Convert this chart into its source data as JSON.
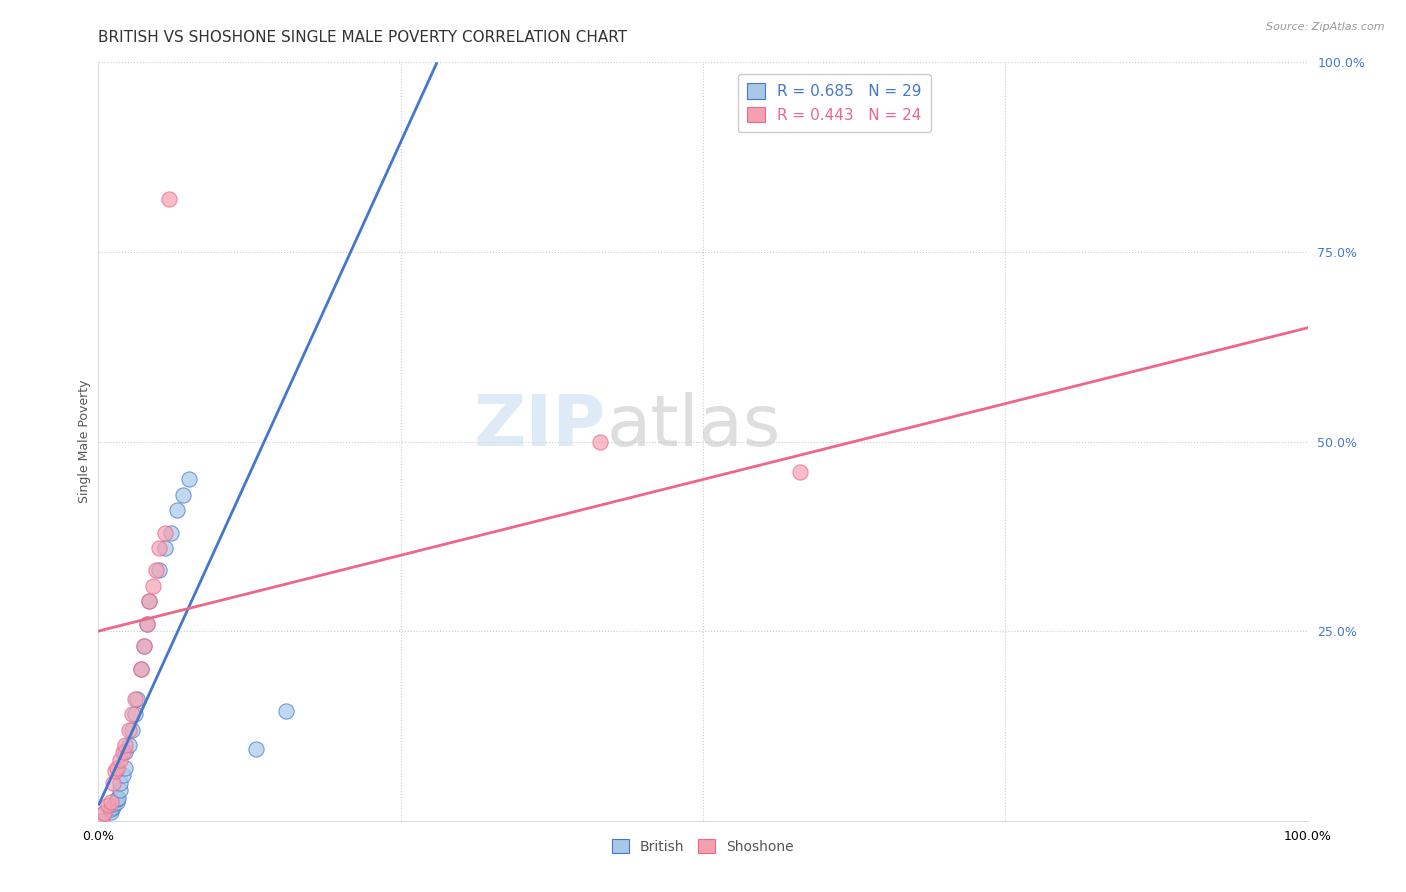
{
  "title": "BRITISH VS SHOSHONE SINGLE MALE POVERTY CORRELATION CHART",
  "source": "Source: ZipAtlas.com",
  "ylabel": "Single Male Poverty",
  "xlabel": "",
  "watermark_zip": "ZIP",
  "watermark_atlas": "atlas",
  "xlim": [
    0.0,
    1.0
  ],
  "ylim": [
    0.0,
    1.0
  ],
  "british_R": "R = 0.685",
  "british_N": "N = 29",
  "shoshone_R": "R = 0.443",
  "shoshone_N": "N = 24",
  "british_color": "#a8c8e8",
  "shoshone_color": "#f4a0b0",
  "trend_british_color": "#4477cc",
  "trend_shoshone_color": "#ee6688",
  "british_x": [
    0.005,
    0.01,
    0.01,
    0.012,
    0.013,
    0.015,
    0.015,
    0.016,
    0.018,
    0.018,
    0.02,
    0.022,
    0.022,
    0.025,
    0.028,
    0.03,
    0.032,
    0.035,
    0.038,
    0.04,
    0.042,
    0.05,
    0.055,
    0.06,
    0.065,
    0.07,
    0.075,
    0.13,
    0.155
  ],
  "british_y": [
    0.01,
    0.012,
    0.015,
    0.018,
    0.022,
    0.025,
    0.028,
    0.03,
    0.04,
    0.05,
    0.06,
    0.07,
    0.09,
    0.1,
    0.12,
    0.14,
    0.16,
    0.2,
    0.23,
    0.26,
    0.29,
    0.33,
    0.36,
    0.38,
    0.41,
    0.43,
    0.45,
    0.095,
    0.145
  ],
  "shoshone_x": [
    0.003,
    0.005,
    0.008,
    0.01,
    0.012,
    0.014,
    0.015,
    0.018,
    0.02,
    0.022,
    0.025,
    0.028,
    0.03,
    0.035,
    0.038,
    0.04,
    0.042,
    0.045,
    0.048,
    0.05,
    0.055,
    0.058,
    0.415,
    0.58
  ],
  "shoshone_y": [
    0.0,
    0.01,
    0.02,
    0.025,
    0.05,
    0.065,
    0.07,
    0.08,
    0.09,
    0.1,
    0.12,
    0.14,
    0.16,
    0.2,
    0.23,
    0.26,
    0.29,
    0.31,
    0.33,
    0.36,
    0.38,
    0.82,
    0.5,
    0.46
  ],
  "british_trend_x": [
    0.0,
    0.28
  ],
  "british_trend_y": [
    0.02,
    1.0
  ],
  "shoshone_trend_x": [
    0.0,
    1.0
  ],
  "shoshone_trend_y": [
    0.25,
    0.65
  ],
  "grid_color": "#cccccc",
  "title_color": "#333333",
  "title_fontsize": 11,
  "legend_fontsize": 11,
  "axis_label_fontsize": 9,
  "right_tick_color": "#4477cc"
}
